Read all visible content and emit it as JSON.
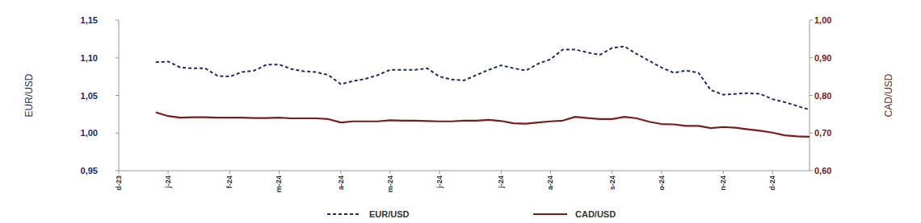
{
  "chart_data": {
    "type": "line",
    "y_label": "EUR/USD",
    "y2_label": "CAD/USD",
    "categories": [
      "d-23",
      null,
      null,
      null,
      "j-24",
      null,
      null,
      null,
      null,
      "f-24",
      null,
      null,
      null,
      "m-24",
      null,
      null,
      null,
      null,
      "a-24",
      null,
      null,
      null,
      "m-24",
      null,
      null,
      null,
      "j-24",
      null,
      null,
      null,
      null,
      "j-24",
      null,
      null,
      null,
      "a-24",
      null,
      null,
      null,
      null,
      "s-24",
      null,
      null,
      null,
      "o-24",
      null,
      null,
      null,
      null,
      "n-24",
      null,
      null,
      null,
      "d-24",
      null,
      null,
      null
    ],
    "series": [
      {
        "name": "EUR/USD",
        "color": "#1f2a6b",
        "line_style": "dashed",
        "axis": "y",
        "values": [
          null,
          null,
          null,
          1.094,
          1.095,
          1.087,
          1.086,
          1.086,
          1.076,
          1.075,
          1.081,
          1.083,
          1.091,
          1.091,
          1.085,
          1.082,
          1.081,
          1.077,
          1.065,
          1.069,
          1.072,
          1.077,
          1.084,
          1.084,
          1.084,
          1.086,
          1.075,
          1.071,
          1.07,
          1.077,
          1.084,
          1.09,
          1.086,
          1.083,
          1.092,
          1.098,
          1.111,
          1.111,
          1.107,
          1.104,
          1.113,
          1.115,
          1.105,
          1.096,
          1.087,
          1.08,
          1.083,
          1.08,
          1.057,
          1.051,
          1.052,
          1.053,
          1.052,
          1.045,
          1.041,
          1.036,
          1.031
        ]
      },
      {
        "name": "CAD/USD",
        "color": "#7a1c1c",
        "line_style": "solid",
        "axis": "y2",
        "values": [
          null,
          null,
          null,
          0.755,
          0.745,
          0.741,
          0.742,
          0.742,
          0.741,
          0.741,
          0.741,
          0.74,
          0.74,
          0.741,
          0.739,
          0.739,
          0.739,
          0.737,
          0.728,
          0.731,
          0.731,
          0.731,
          0.734,
          0.733,
          0.733,
          0.732,
          0.731,
          0.731,
          0.733,
          0.733,
          0.735,
          0.732,
          0.726,
          0.725,
          0.728,
          0.731,
          0.733,
          0.743,
          0.74,
          0.737,
          0.737,
          0.743,
          0.739,
          0.73,
          0.724,
          0.723,
          0.719,
          0.719,
          0.713,
          0.716,
          0.714,
          0.71,
          0.706,
          0.701,
          0.694,
          0.691,
          0.69
        ]
      }
    ],
    "ylim": [
      0.95,
      1.15
    ],
    "yticks": [
      {
        "value": 0.95,
        "label": "0,95"
      },
      {
        "value": 1.0,
        "label": "1,00"
      },
      {
        "value": 1.05,
        "label": "1,05"
      },
      {
        "value": 1.1,
        "label": "1,10"
      },
      {
        "value": 1.15,
        "label": "1,15"
      }
    ],
    "y2lim": [
      0.6,
      1.0
    ],
    "y2ticks": [
      {
        "value": 0.6,
        "label": "0,60"
      },
      {
        "value": 0.7,
        "label": "0,70"
      },
      {
        "value": 0.8,
        "label": "0,80"
      },
      {
        "value": 0.9,
        "label": "0,90"
      },
      {
        "value": 1.0,
        "label": "1,00"
      }
    ],
    "grid": false,
    "legend": "bottom"
  }
}
